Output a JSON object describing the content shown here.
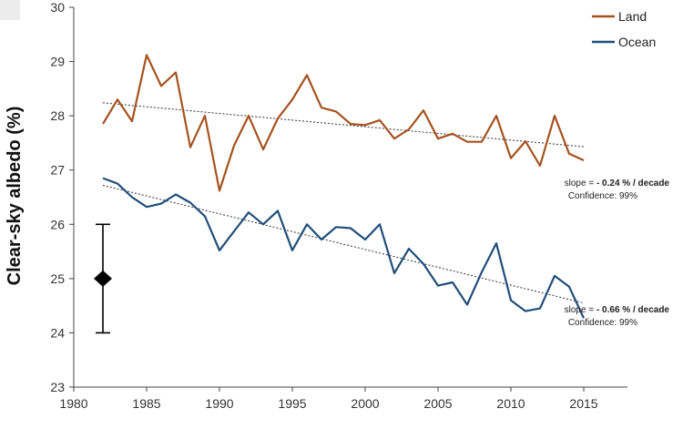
{
  "chart_data": {
    "type": "line",
    "title": "",
    "xlabel": "",
    "ylabel": "Clear-sky albedo (%)",
    "xlim": [
      1980,
      2018
    ],
    "ylim": [
      23,
      30
    ],
    "x_ticks": [
      "1980",
      "1985",
      "1990",
      "1995",
      "2000",
      "2005",
      "2010",
      "2015"
    ],
    "y_ticks": [
      "23",
      "24",
      "25",
      "26",
      "27",
      "28",
      "29",
      "30"
    ],
    "x": [
      1982,
      1983,
      1984,
      1985,
      1986,
      1987,
      1988,
      1989,
      1990,
      1991,
      1992,
      1993,
      1994,
      1995,
      1996,
      1997,
      1998,
      1999,
      2000,
      2001,
      2002,
      2003,
      2004,
      2005,
      2006,
      2007,
      2008,
      2009,
      2010,
      2011,
      2012,
      2013,
      2014,
      2015
    ],
    "series": [
      {
        "name": "Land",
        "color": "#a5521e",
        "values": [
          27.85,
          28.3,
          27.9,
          29.12,
          28.55,
          28.8,
          27.42,
          28.0,
          26.62,
          27.45,
          28.0,
          27.38,
          27.95,
          28.3,
          28.75,
          28.15,
          28.08,
          27.85,
          27.83,
          27.92,
          27.58,
          27.75,
          28.1,
          27.58,
          27.67,
          27.52,
          27.52,
          28.0,
          27.22,
          27.53,
          27.08,
          28.0,
          27.3,
          27.18
        ],
        "trend": {
          "x": [
            1982,
            2015
          ],
          "y": [
            28.24,
            27.43
          ]
        },
        "slope_label": "slope = ",
        "slope_value": "- 0.24 % / decade",
        "confidence": "Confidence: 99%"
      },
      {
        "name": "Ocean",
        "color": "#1f4e79",
        "values": [
          26.85,
          26.75,
          26.5,
          26.32,
          26.38,
          26.55,
          26.4,
          26.15,
          25.52,
          25.87,
          26.22,
          26.0,
          26.25,
          25.52,
          26.0,
          25.72,
          25.95,
          25.93,
          25.72,
          26.0,
          25.1,
          25.55,
          25.27,
          24.87,
          24.93,
          24.52,
          25.12,
          25.65,
          24.6,
          24.4,
          24.45,
          25.05,
          24.85,
          24.27
        ],
        "trend": {
          "x": [
            1982,
            2015
          ],
          "y": [
            26.72,
            24.55
          ]
        },
        "slope_label": "slope = ",
        "slope_value": "- 0.66 % / decade",
        "confidence": "Confidence: 99%"
      }
    ],
    "error_bar": {
      "x": 1982,
      "y": 25.0,
      "low": 24.0,
      "high": 26.0
    },
    "legend": {
      "position": "top-right"
    },
    "grid": false
  }
}
